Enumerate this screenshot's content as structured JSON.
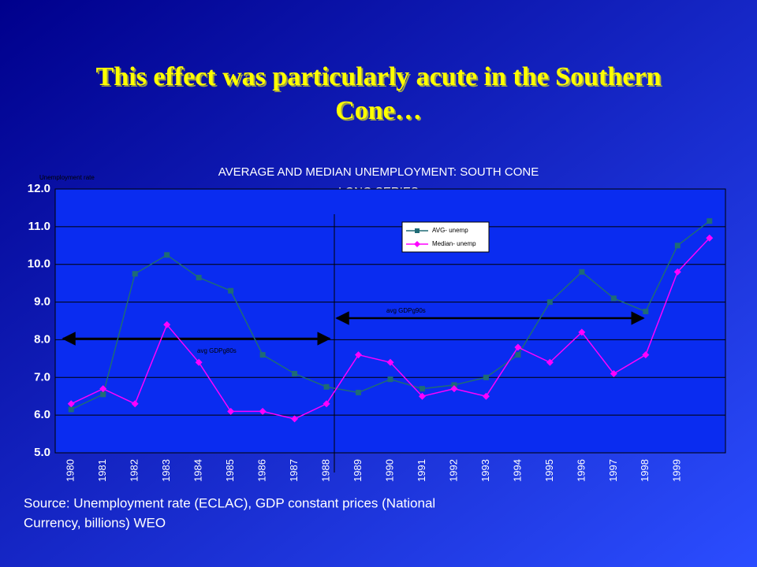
{
  "chart_data": {
    "type": "line",
    "slide_title": [
      "This effect was particularly acute in the Southern",
      "Cone…"
    ],
    "title": [
      "AVERAGE AND MEDIAN UNEMPLOYMENT: SOUTH CONE",
      "LONG SERIES"
    ],
    "y_label": "Unemployment rate",
    "categories": [
      "1980",
      "1981",
      "1982",
      "1983",
      "1984",
      "1985",
      "1986",
      "1987",
      "1988",
      "1989",
      "1990",
      "1991",
      "1992",
      "1993",
      "1994",
      "1995",
      "1996",
      "1997",
      "1998",
      "1999",
      null
    ],
    "series": [
      {
        "name": "AVG- unemp",
        "color": "#1f6b75",
        "marker": "square",
        "values": [
          6.15,
          6.55,
          9.75,
          10.25,
          9.65,
          9.3,
          7.6,
          7.1,
          6.75,
          6.6,
          6.95,
          6.7,
          6.8,
          7.0,
          7.6,
          9.0,
          9.8,
          9.1,
          8.75,
          10.5,
          11.15
        ]
      },
      {
        "name": "Median- unemp",
        "color": "#ff00ff",
        "marker": "diamond",
        "values": [
          6.3,
          6.7,
          6.3,
          8.4,
          7.4,
          6.1,
          6.1,
          5.9,
          6.3,
          7.6,
          7.4,
          6.5,
          6.7,
          6.5,
          7.8,
          7.4,
          8.2,
          7.1,
          7.6,
          9.8,
          10.7
        ]
      }
    ],
    "ylim": [
      5,
      12
    ],
    "yticks": [
      {
        "value": 5,
        "label": "5.0"
      },
      {
        "value": 6,
        "label": "6.0"
      },
      {
        "value": 7,
        "label": "7.0"
      },
      {
        "value": 8,
        "label": "8.0"
      },
      {
        "value": 9,
        "label": "9.0"
      },
      {
        "value": 10,
        "label": "10.0"
      },
      {
        "value": 11,
        "label": "11.0"
      },
      {
        "value": 12,
        "label": "12.0"
      }
    ],
    "grid": true,
    "annotations": [
      "avg GDPg80s",
      "avg GDPg90s"
    ],
    "source": [
      "Source: Unemployment rate (ECLAC),  GDP constant prices (National",
      "Currency, billions) WEO"
    ]
  }
}
